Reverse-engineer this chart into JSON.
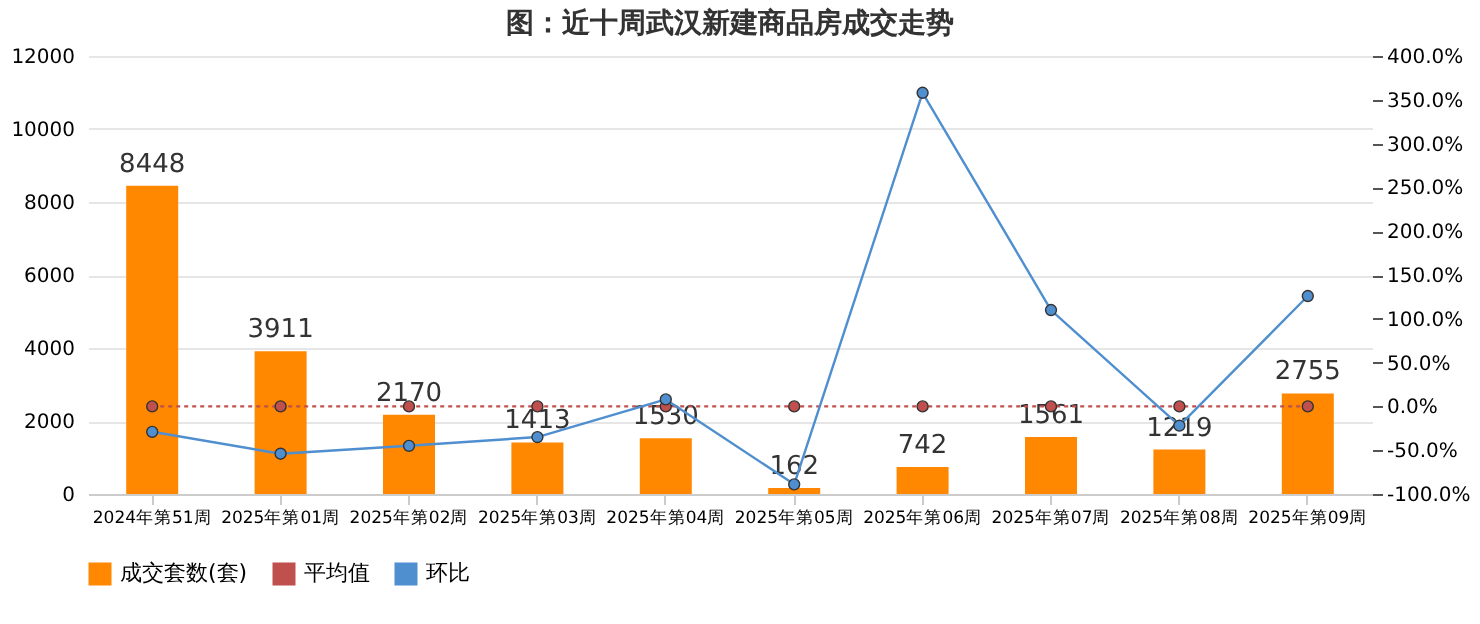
{
  "chart_data": {
    "type": "bar",
    "title": "图：近十周武汉新建商品房成交走势",
    "categories": [
      "2024年第51周",
      "2025年第01周",
      "2025年第02周",
      "2025年第03周",
      "2025年第04周",
      "2025年第05周",
      "2025年第06周",
      "2025年第07周",
      "2025年第08周",
      "2025年第09周"
    ],
    "series": [
      {
        "name": "成交套数(套)",
        "color": "#ff8800",
        "data_labels": true,
        "values": [
          8448,
          3911,
          2170,
          1413,
          1530,
          162,
          742,
          1561,
          1219,
          2755
        ]
      },
      {
        "name": "平均值",
        "type": "line",
        "color": "#c0504d",
        "line_style": "dotted",
        "marker": "circle",
        "values": [
          2400,
          2400,
          2400,
          2400,
          2400,
          2400,
          2400,
          2400,
          2400,
          2400
        ]
      },
      {
        "name": "环比",
        "type": "line",
        "axis": "y2",
        "color": "#4f8fcf",
        "line_style": "solid",
        "marker": "circle",
        "values": [
          -29,
          -54,
          -45,
          -35,
          8,
          -89,
          358,
          110,
          -22,
          126
        ]
      }
    ],
    "ylim": [
      0,
      12000
    ],
    "yticks": [
      0,
      2000,
      4000,
      6000,
      8000,
      10000,
      12000
    ],
    "y2lim": [
      -100,
      400
    ],
    "y2ticks": [
      {
        "value": -100,
        "label": "-100.0%"
      },
      {
        "value": -50,
        "label": "-50.0%"
      },
      {
        "value": 0,
        "label": "0.0%"
      },
      {
        "value": 50,
        "label": "50.0%"
      },
      {
        "value": 100,
        "label": "100.0%"
      },
      {
        "value": 150,
        "label": "150.0%"
      },
      {
        "value": 200,
        "label": "200.0%"
      },
      {
        "value": 250,
        "label": "250.0%"
      },
      {
        "value": 300,
        "label": "300.0%"
      },
      {
        "value": 350,
        "label": "350.0%"
      },
      {
        "value": 400,
        "label": "400.0%"
      }
    ],
    "grid": "y",
    "legend": "bottom"
  }
}
